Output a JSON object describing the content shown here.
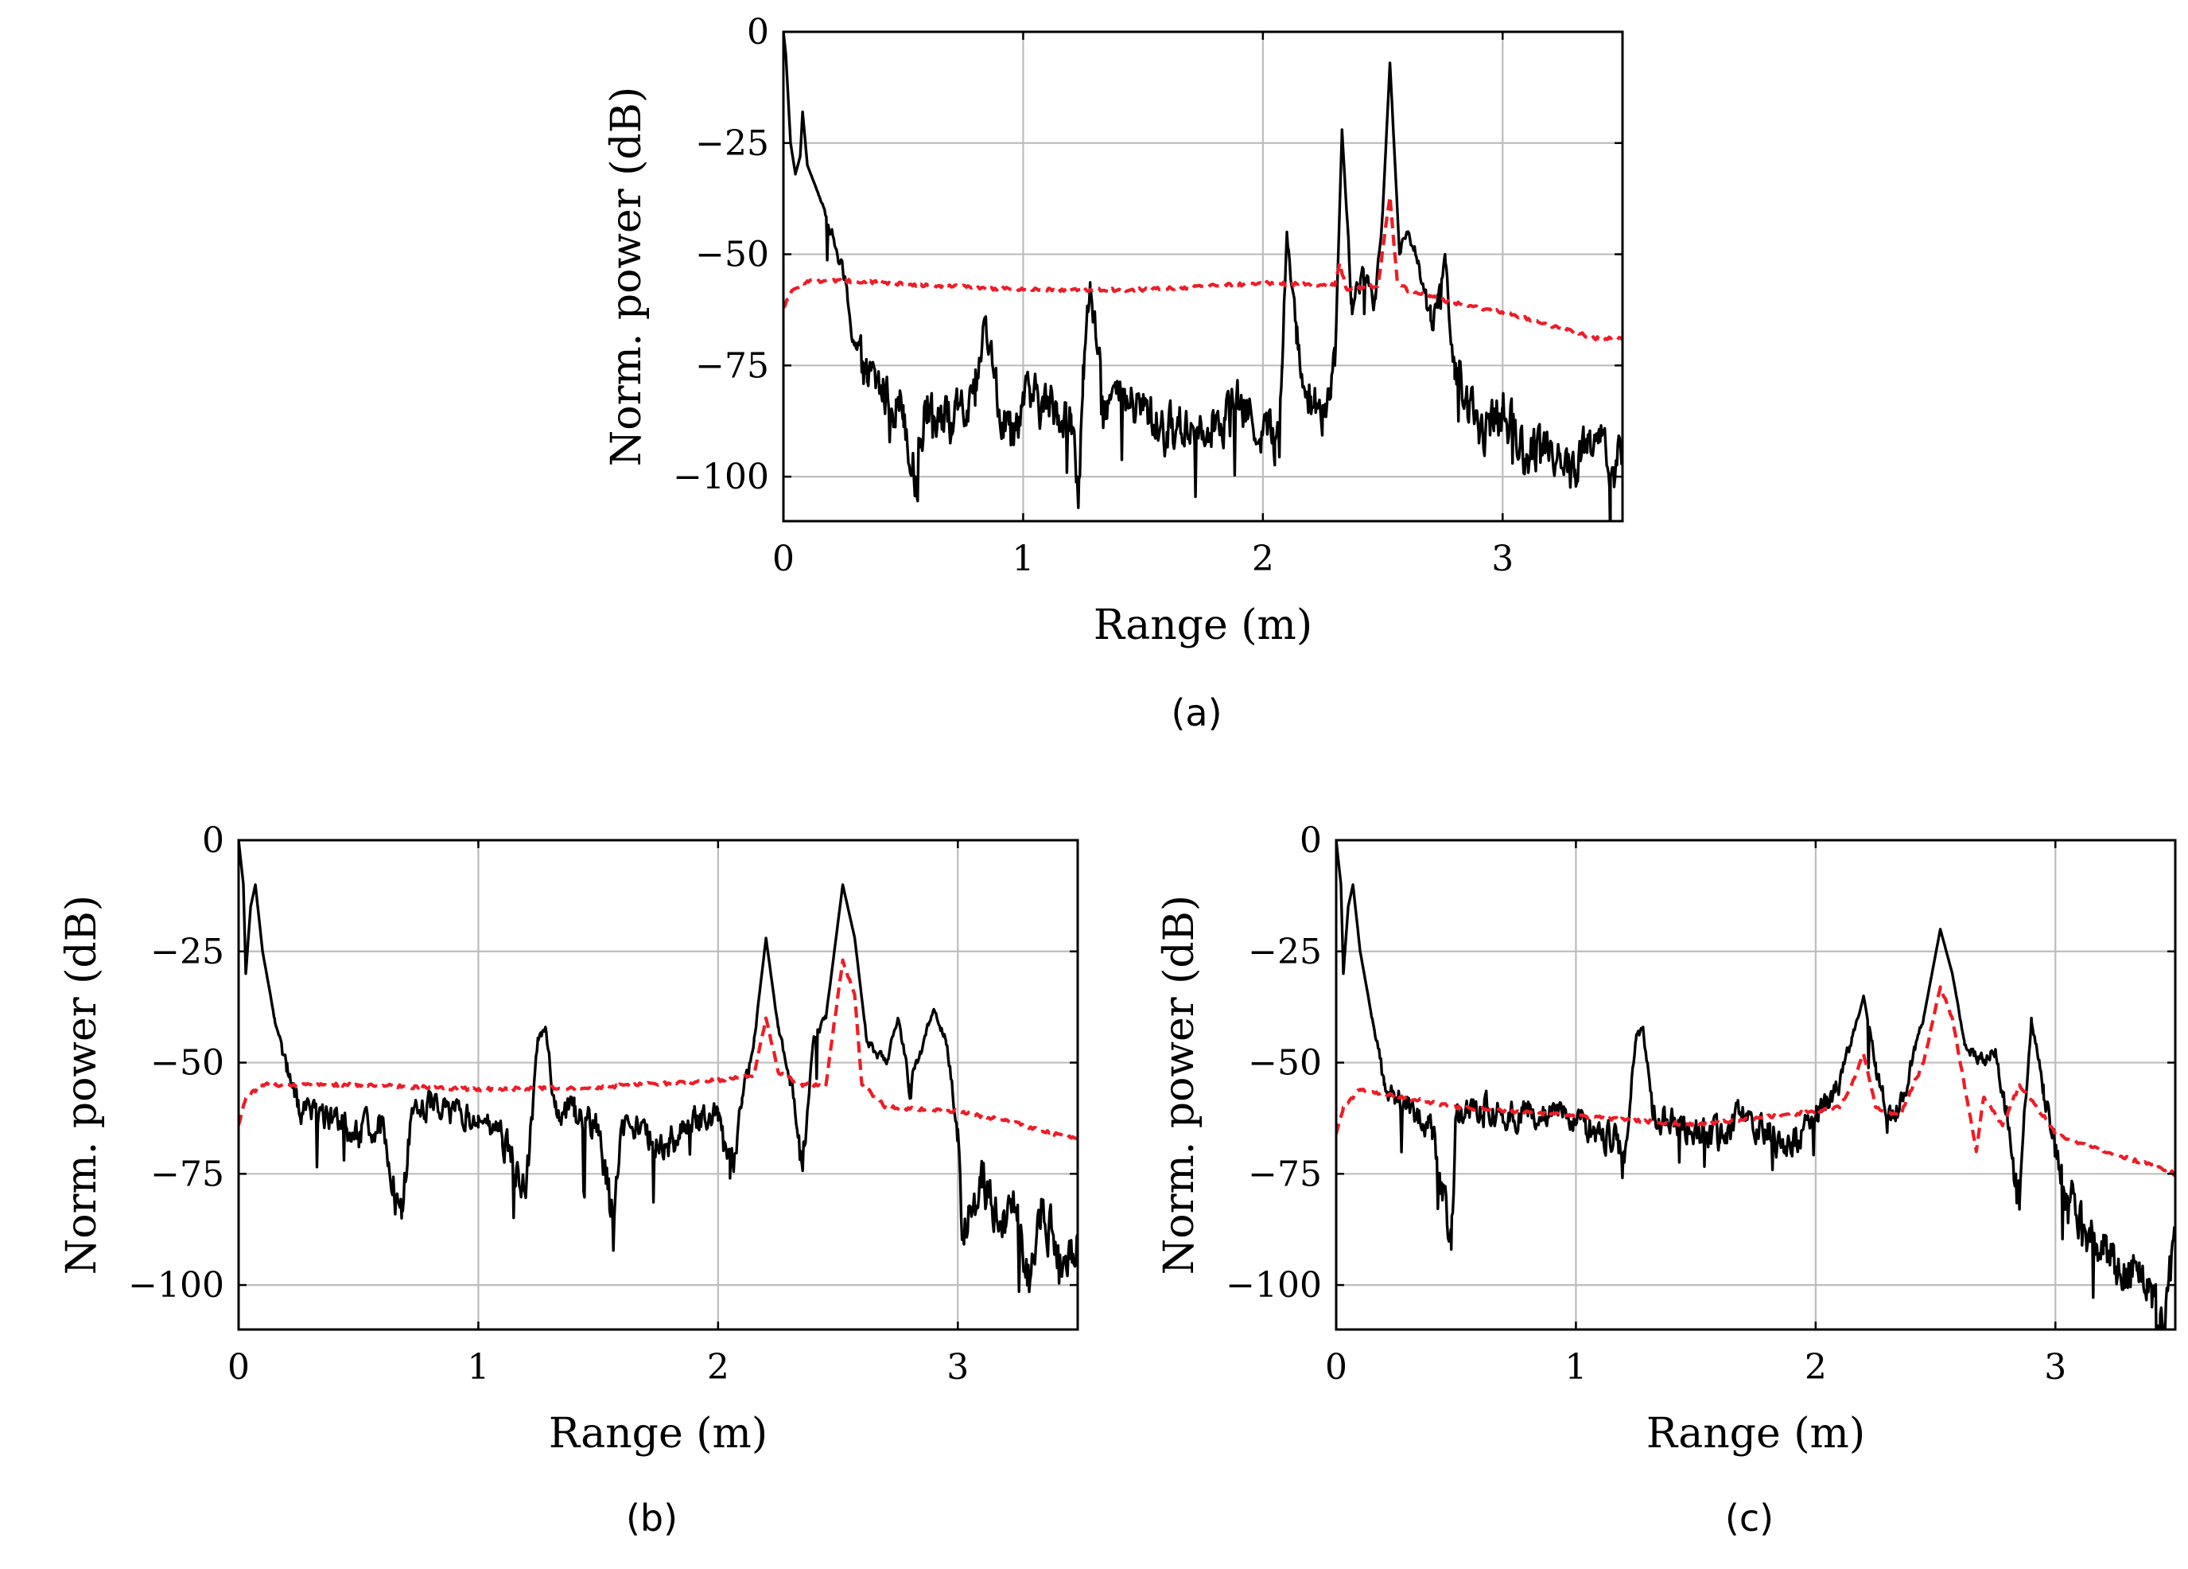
{
  "chart_data": [
    {
      "id": "a",
      "type": "line",
      "caption": "(a)",
      "xlabel": "Range (m)",
      "ylabel": "Norm. power (dB)",
      "xlim": [
        0,
        3.5
      ],
      "ylim": [
        -110,
        0
      ],
      "xticks": [
        0,
        1,
        2,
        3
      ],
      "xtick_labels": [
        "0",
        "1",
        "2",
        "3"
      ],
      "yticks": [
        0,
        -25,
        -50,
        -75,
        -100
      ],
      "ytick_labels": [
        "0",
        "−25",
        "−50",
        "−75",
        "−100"
      ],
      "grid": true,
      "series": [
        {
          "name": "solid",
          "color": "#000000",
          "style": "solid",
          "anchors": [
            [
              0,
              0
            ],
            [
              0.01,
              -5
            ],
            [
              0.03,
              -25
            ],
            [
              0.05,
              -32
            ],
            [
              0.07,
              -28
            ],
            [
              0.08,
              -18
            ],
            [
              0.1,
              -30
            ],
            [
              0.15,
              -37
            ],
            [
              0.2,
              -45
            ],
            [
              0.25,
              -55
            ],
            [
              0.3,
              -70
            ],
            [
              0.35,
              -78
            ],
            [
              0.5,
              -84
            ],
            [
              0.55,
              -100
            ],
            [
              0.6,
              -82
            ],
            [
              0.7,
              -88
            ],
            [
              0.8,
              -84
            ],
            [
              0.84,
              -65
            ],
            [
              0.9,
              -85
            ],
            [
              0.95,
              -90
            ],
            [
              1.0,
              -83
            ],
            [
              1.1,
              -84
            ],
            [
              1.2,
              -86
            ],
            [
              1.23,
              -107
            ],
            [
              1.25,
              -75
            ],
            [
              1.28,
              -58
            ],
            [
              1.33,
              -82
            ],
            [
              1.5,
              -85
            ],
            [
              1.6,
              -90
            ],
            [
              1.7,
              -88
            ],
            [
              1.8,
              -87
            ],
            [
              1.9,
              -84
            ],
            [
              2.05,
              -92
            ],
            [
              2.08,
              -75
            ],
            [
              2.1,
              -45
            ],
            [
              2.14,
              -70
            ],
            [
              2.2,
              -82
            ],
            [
              2.25,
              -84
            ],
            [
              2.3,
              -75
            ],
            [
              2.33,
              -22
            ],
            [
              2.37,
              -60
            ],
            [
              2.42,
              -55
            ],
            [
              2.47,
              -60
            ],
            [
              2.5,
              -40
            ],
            [
              2.53,
              -7
            ],
            [
              2.57,
              -50
            ],
            [
              2.6,
              -45
            ],
            [
              2.65,
              -52
            ],
            [
              2.7,
              -65
            ],
            [
              2.73,
              -62
            ],
            [
              2.76,
              -50
            ],
            [
              2.8,
              -78
            ],
            [
              2.9,
              -90
            ],
            [
              3.0,
              -85
            ],
            [
              3.1,
              -95
            ],
            [
              3.2,
              -92
            ],
            [
              3.3,
              -100
            ],
            [
              3.35,
              -92
            ],
            [
              3.4,
              -90
            ],
            [
              3.45,
              -100
            ],
            [
              3.5,
              -95
            ]
          ]
        },
        {
          "name": "dashed",
          "color": "#ee1c25",
          "style": "dashed",
          "anchors": [
            [
              0,
              -62
            ],
            [
              0.04,
              -58
            ],
            [
              0.1,
              -56
            ],
            [
              0.3,
              -56
            ],
            [
              0.6,
              -57
            ],
            [
              1.0,
              -58
            ],
            [
              1.5,
              -58
            ],
            [
              2.0,
              -56.5
            ],
            [
              2.3,
              -57
            ],
            [
              2.32,
              -52
            ],
            [
              2.35,
              -58
            ],
            [
              2.48,
              -57
            ],
            [
              2.53,
              -37
            ],
            [
              2.56,
              -56
            ],
            [
              2.6,
              -58
            ],
            [
              2.8,
              -61
            ],
            [
              3.0,
              -63
            ],
            [
              3.2,
              -66
            ],
            [
              3.4,
              -69
            ],
            [
              3.5,
              -69
            ]
          ]
        }
      ]
    },
    {
      "id": "b",
      "type": "line",
      "caption": "(b)",
      "xlabel": "Range (m)",
      "ylabel": "Norm. power (dB)",
      "xlim": [
        0,
        3.5
      ],
      "ylim": [
        -110,
        0
      ],
      "xticks": [
        0,
        1,
        2,
        3
      ],
      "xtick_labels": [
        "0",
        "1",
        "2",
        "3"
      ],
      "yticks": [
        0,
        -25,
        -50,
        -75,
        -100
      ],
      "ytick_labels": [
        "0",
        "−25",
        "−50",
        "−75",
        "−100"
      ],
      "grid": true,
      "series": [
        {
          "name": "solid",
          "color": "#000000",
          "style": "solid",
          "anchors": [
            [
              0,
              0
            ],
            [
              0.02,
              -10
            ],
            [
              0.03,
              -30
            ],
            [
              0.05,
              -15
            ],
            [
              0.07,
              -10
            ],
            [
              0.1,
              -25
            ],
            [
              0.15,
              -40
            ],
            [
              0.2,
              -52
            ],
            [
              0.25,
              -60
            ],
            [
              0.4,
              -62
            ],
            [
              0.5,
              -66
            ],
            [
              0.6,
              -64
            ],
            [
              0.68,
              -85
            ],
            [
              0.72,
              -62
            ],
            [
              0.8,
              -60
            ],
            [
              1.0,
              -62
            ],
            [
              1.1,
              -67
            ],
            [
              1.2,
              -78
            ],
            [
              1.25,
              -45
            ],
            [
              1.28,
              -42
            ],
            [
              1.32,
              -60
            ],
            [
              1.4,
              -62
            ],
            [
              1.5,
              -64
            ],
            [
              1.56,
              -85
            ],
            [
              1.6,
              -63
            ],
            [
              1.7,
              -66
            ],
            [
              1.8,
              -68
            ],
            [
              1.9,
              -62
            ],
            [
              2.0,
              -63
            ],
            [
              2.05,
              -76
            ],
            [
              2.1,
              -58
            ],
            [
              2.15,
              -45
            ],
            [
              2.2,
              -22
            ],
            [
              2.25,
              -42
            ],
            [
              2.3,
              -55
            ],
            [
              2.35,
              -73
            ],
            [
              2.4,
              -45
            ],
            [
              2.45,
              -40
            ],
            [
              2.52,
              -10
            ],
            [
              2.57,
              -22
            ],
            [
              2.62,
              -45
            ],
            [
              2.7,
              -50
            ],
            [
              2.75,
              -40
            ],
            [
              2.8,
              -55
            ],
            [
              2.9,
              -38
            ],
            [
              2.95,
              -45
            ],
            [
              3.0,
              -65
            ],
            [
              3.02,
              -88
            ],
            [
              3.1,
              -78
            ],
            [
              3.2,
              -85
            ],
            [
              3.25,
              -82
            ],
            [
              3.3,
              -100
            ],
            [
              3.35,
              -83
            ],
            [
              3.45,
              -95
            ],
            [
              3.5,
              -90
            ]
          ]
        },
        {
          "name": "dashed",
          "color": "#ee1c25",
          "style": "dashed",
          "anchors": [
            [
              0,
              -64
            ],
            [
              0.03,
              -58
            ],
            [
              0.1,
              -55
            ],
            [
              0.5,
              -55
            ],
            [
              1.0,
              -56
            ],
            [
              1.5,
              -55.5
            ],
            [
              2.0,
              -54
            ],
            [
              2.15,
              -53
            ],
            [
              2.2,
              -40
            ],
            [
              2.25,
              -52
            ],
            [
              2.35,
              -55
            ],
            [
              2.45,
              -55
            ],
            [
              2.52,
              -27
            ],
            [
              2.57,
              -35
            ],
            [
              2.6,
              -55
            ],
            [
              2.7,
              -60
            ],
            [
              3.0,
              -61
            ],
            [
              3.2,
              -63
            ],
            [
              3.4,
              -66
            ],
            [
              3.5,
              -67
            ]
          ]
        }
      ]
    },
    {
      "id": "c",
      "type": "line",
      "caption": "(c)",
      "xlabel": "Range (m)",
      "ylabel": "Norm. power (dB)",
      "xlim": [
        0,
        3.5
      ],
      "ylim": [
        -110,
        0
      ],
      "xticks": [
        0,
        1,
        2,
        3
      ],
      "xtick_labels": [
        "0",
        "1",
        "2",
        "3"
      ],
      "yticks": [
        0,
        -25,
        -50,
        -75,
        -100
      ],
      "ytick_labels": [
        "0",
        "−25",
        "−50",
        "−75",
        "−100"
      ],
      "grid": true,
      "series": [
        {
          "name": "solid",
          "color": "#000000",
          "style": "solid",
          "anchors": [
            [
              0,
              0
            ],
            [
              0.02,
              -10
            ],
            [
              0.03,
              -30
            ],
            [
              0.05,
              -15
            ],
            [
              0.07,
              -10
            ],
            [
              0.1,
              -25
            ],
            [
              0.15,
              -40
            ],
            [
              0.2,
              -55
            ],
            [
              0.3,
              -60
            ],
            [
              0.4,
              -65
            ],
            [
              0.48,
              -92
            ],
            [
              0.5,
              -62
            ],
            [
              0.6,
              -60
            ],
            [
              0.8,
              -62
            ],
            [
              1.0,
              -63
            ],
            [
              1.1,
              -66
            ],
            [
              1.2,
              -70
            ],
            [
              1.25,
              -45
            ],
            [
              1.28,
              -42
            ],
            [
              1.32,
              -62
            ],
            [
              1.5,
              -65
            ],
            [
              1.6,
              -68
            ],
            [
              1.7,
              -62
            ],
            [
              1.8,
              -66
            ],
            [
              1.9,
              -68
            ],
            [
              2.0,
              -63
            ],
            [
              2.1,
              -55
            ],
            [
              2.15,
              -45
            ],
            [
              2.2,
              -35
            ],
            [
              2.25,
              -50
            ],
            [
              2.3,
              -63
            ],
            [
              2.35,
              -60
            ],
            [
              2.45,
              -40
            ],
            [
              2.52,
              -20
            ],
            [
              2.57,
              -30
            ],
            [
              2.62,
              -45
            ],
            [
              2.7,
              -50
            ],
            [
              2.75,
              -47
            ],
            [
              2.8,
              -63
            ],
            [
              2.85,
              -83
            ],
            [
              2.9,
              -40
            ],
            [
              2.95,
              -55
            ],
            [
              3.0,
              -70
            ],
            [
              3.05,
              -80
            ],
            [
              3.1,
              -85
            ],
            [
              3.2,
              -93
            ],
            [
              3.3,
              -98
            ],
            [
              3.35,
              -95
            ],
            [
              3.4,
              -100
            ],
            [
              3.45,
              -110
            ],
            [
              3.5,
              -90
            ]
          ]
        },
        {
          "name": "dashed",
          "color": "#ee1c25",
          "style": "dashed",
          "anchors": [
            [
              0,
              -66
            ],
            [
              0.03,
              -60
            ],
            [
              0.1,
              -56
            ],
            [
              0.5,
              -60
            ],
            [
              1.0,
              -62
            ],
            [
              1.5,
              -64
            ],
            [
              2.0,
              -61
            ],
            [
              2.1,
              -60
            ],
            [
              2.15,
              -55
            ],
            [
              2.2,
              -48
            ],
            [
              2.25,
              -60
            ],
            [
              2.35,
              -62
            ],
            [
              2.45,
              -50
            ],
            [
              2.52,
              -33
            ],
            [
              2.57,
              -40
            ],
            [
              2.62,
              -55
            ],
            [
              2.67,
              -70
            ],
            [
              2.7,
              -58
            ],
            [
              2.78,
              -64
            ],
            [
              2.85,
              -55
            ],
            [
              2.95,
              -62
            ],
            [
              3.0,
              -66
            ],
            [
              3.2,
              -70
            ],
            [
              3.4,
              -73
            ],
            [
              3.5,
              -75
            ]
          ]
        }
      ]
    }
  ]
}
